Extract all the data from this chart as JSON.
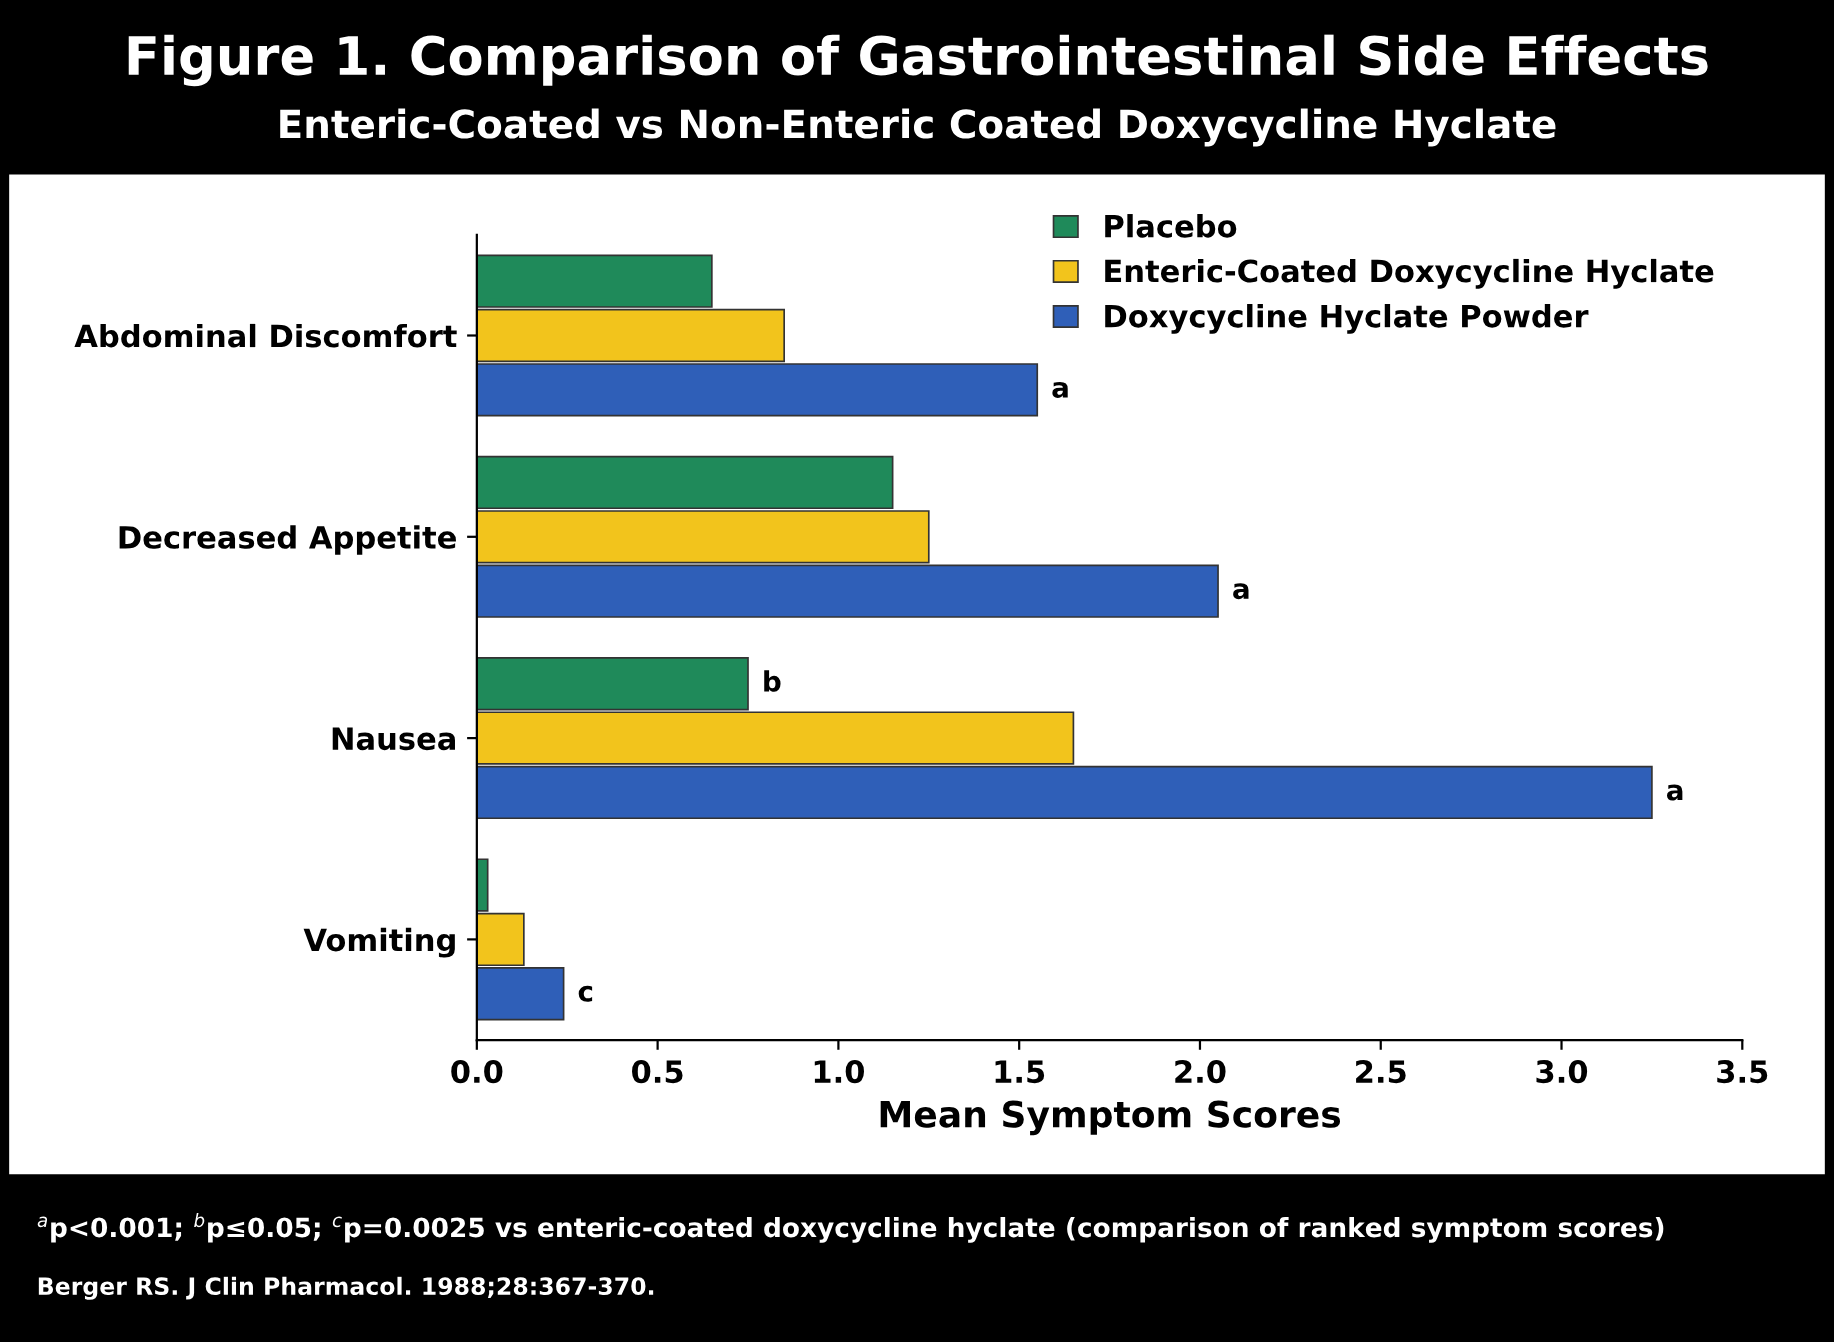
{
  "chart_data": {
    "type": "bar",
    "orientation": "horizontal",
    "title": "Figure 1. Comparison of Gastrointestinal Side Effects",
    "subtitle": "Enteric-Coated vs Non-Enteric Coated Doxycycline Hyclate",
    "xlabel": "Mean Symptom Scores",
    "categories": [
      "Abdominal Discomfort",
      "Decreased Appetite",
      "Nausea",
      "Vomiting"
    ],
    "series": [
      {
        "name": "Placebo",
        "color": "#1f8a5a",
        "values": [
          0.65,
          1.15,
          0.75,
          0.03
        ],
        "value_labels": [
          null,
          null,
          "b",
          null
        ]
      },
      {
        "name": "Enteric-Coated Doxycycline Hyclate",
        "color": "#f2c41c",
        "values": [
          0.85,
          1.25,
          1.65,
          0.13
        ]
      },
      {
        "name": "Doxycycline Hyclate Powder",
        "color": "#2f5fb8",
        "values": [
          1.55,
          2.05,
          3.25,
          0.24
        ],
        "value_labels": [
          "a",
          "a",
          "a",
          "c"
        ]
      }
    ],
    "xlim": [
      0,
      3.5
    ],
    "xticks": [
      {
        "value": 0,
        "label": "0.0"
      },
      {
        "value": 0.5,
        "label": "0.5"
      },
      {
        "value": 1,
        "label": "1.0"
      },
      {
        "value": 1.5,
        "label": "1.5"
      },
      {
        "value": 2,
        "label": "2.0"
      },
      {
        "value": 2.5,
        "label": "2.5"
      },
      {
        "value": 3,
        "label": "3.0"
      },
      {
        "value": 3.5,
        "label": "3.5"
      }
    ],
    "grid": false,
    "legend": "top right",
    "annotations": [
      "$^{a}$p<0.001; $^{b}$p≤0.05; $^{c}$p=0.0025 vs enteric-coated doxycycline hyclate (comparison of ranked symptom scores)",
      "Berger RS. J Clin Pharmacol. 1988;28:367-370."
    ]
  }
}
